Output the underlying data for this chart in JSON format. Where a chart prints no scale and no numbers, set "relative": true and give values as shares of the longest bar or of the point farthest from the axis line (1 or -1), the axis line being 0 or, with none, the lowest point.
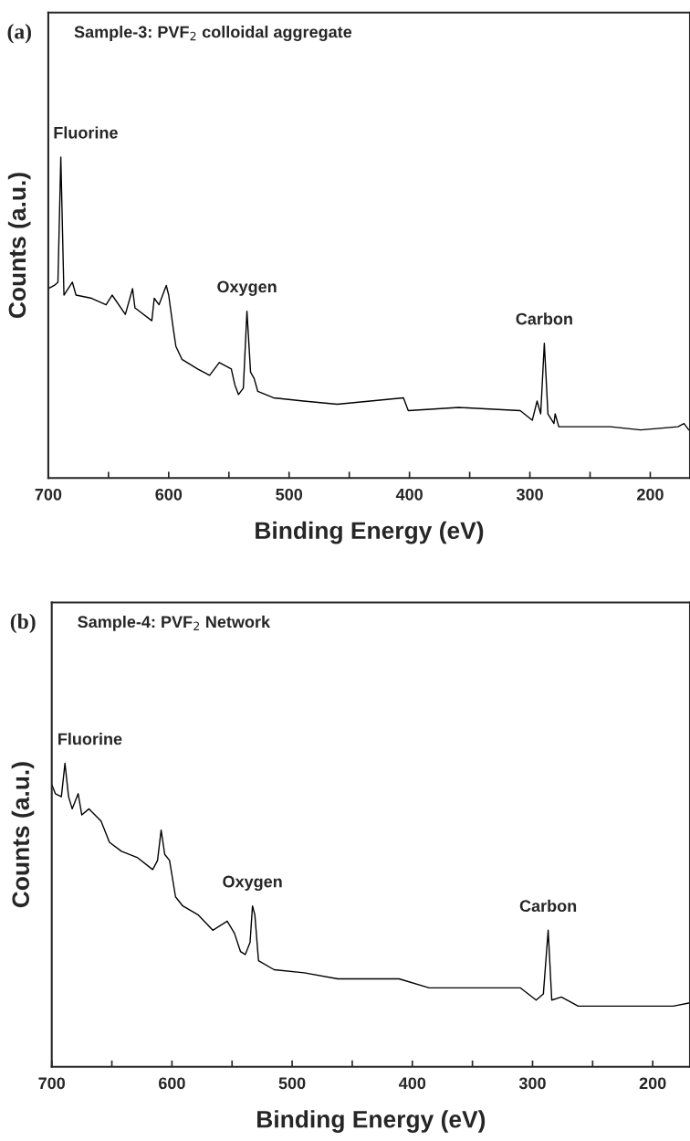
{
  "chart_data": [
    {
      "type": "line",
      "title": "Sample-3: PVF$_{2}$ colloidal aggregate",
      "xlabel": "Binding Energy (eV)",
      "ylabel": "Counts (a.u.)",
      "relative": true,
      "grid": false,
      "legend": false,
      "marker": "none",
      "line_style": "solid",
      "xlim": [
        700,
        167
      ],
      "xticks": [
        700,
        {
          "value": 650,
          "label": null
        },
        600,
        {
          "value": 550,
          "label": null
        },
        500,
        {
          "value": 450,
          "label": null
        },
        400,
        {
          "value": 350,
          "label": null
        },
        300,
        {
          "value": 250,
          "label": null
        },
        200
      ],
      "annotations": [
        "(a)",
        {
          "text": "Fluorine",
          "x": 689.6,
          "y": 1.0
        },
        {
          "text": "Oxygen",
          "x": 535,
          "y": 0.52
        },
        {
          "text": "Carbon",
          "x": 288,
          "y": 0.42
        }
      ],
      "series": [
        {
          "color": "#000000",
          "x": [
            700,
            695,
            692,
            689.6,
            687,
            680,
            677,
            664,
            652,
            647,
            636,
            630,
            628,
            614,
            612,
            608,
            602,
            600,
            596,
            594,
            589,
            576,
            566,
            558,
            548,
            545,
            542,
            538,
            535,
            532,
            529,
            526,
            513,
            488,
            460,
            405,
            401,
            359,
            308,
            298,
            294,
            291,
            288,
            285,
            280,
            279,
            276,
            233,
            208,
            177,
            172,
            168
          ],
          "values": [
            0.59,
            0.6,
            0.61,
            1.0,
            0.57,
            0.61,
            0.57,
            0.56,
            0.54,
            0.57,
            0.51,
            0.59,
            0.53,
            0.49,
            0.56,
            0.54,
            0.6,
            0.57,
            0.46,
            0.41,
            0.37,
            0.34,
            0.32,
            0.36,
            0.34,
            0.29,
            0.26,
            0.28,
            0.52,
            0.33,
            0.31,
            0.27,
            0.25,
            0.24,
            0.23,
            0.25,
            0.21,
            0.22,
            0.21,
            0.18,
            0.24,
            0.2,
            0.42,
            0.2,
            0.17,
            0.2,
            0.16,
            0.16,
            0.15,
            0.16,
            0.17,
            0.15
          ]
        }
      ]
    },
    {
      "type": "line",
      "title": "Sample-4: PVF$_{2}$ Network",
      "xlabel": "Binding Energy (eV)",
      "ylabel": "Counts (a.u.)",
      "relative": true,
      "grid": false,
      "legend": false,
      "marker": "none",
      "line_style": "solid",
      "xlim": [
        700,
        169
      ],
      "xticks": [
        700,
        {
          "value": 650,
          "label": null
        },
        600,
        {
          "value": 550,
          "label": null
        },
        500,
        {
          "value": 450,
          "label": null
        },
        400,
        {
          "value": 350,
          "label": null
        },
        300,
        {
          "value": 250,
          "label": null
        },
        200
      ],
      "annotations": [
        "(b)",
        {
          "text": "Fluorine",
          "x": 689,
          "y": 1.0
        },
        {
          "text": "Oxygen",
          "x": 533,
          "y": 0.53
        },
        {
          "text": "Carbon",
          "x": 287,
          "y": 0.45
        }
      ],
      "series": [
        {
          "color": "#000000",
          "x": [
            700,
            697,
            692,
            689,
            686,
            683,
            678,
            675,
            669,
            659,
            652,
            642,
            629,
            616,
            612,
            609,
            606,
            602,
            597,
            591,
            578,
            566,
            554,
            548,
            543,
            539,
            535,
            533,
            531,
            528,
            515,
            490,
            462,
            411,
            386,
            335,
            310,
            297,
            291,
            287,
            284,
            276,
            262,
            234,
            183,
            170
          ],
          "values": [
            0.93,
            0.9,
            0.89,
            1.0,
            0.89,
            0.85,
            0.9,
            0.83,
            0.85,
            0.81,
            0.74,
            0.71,
            0.69,
            0.65,
            0.68,
            0.78,
            0.7,
            0.68,
            0.56,
            0.53,
            0.5,
            0.45,
            0.48,
            0.44,
            0.38,
            0.37,
            0.41,
            0.53,
            0.5,
            0.35,
            0.32,
            0.31,
            0.29,
            0.29,
            0.26,
            0.26,
            0.26,
            0.22,
            0.24,
            0.45,
            0.22,
            0.23,
            0.2,
            0.2,
            0.2,
            0.21
          ]
        }
      ]
    }
  ]
}
